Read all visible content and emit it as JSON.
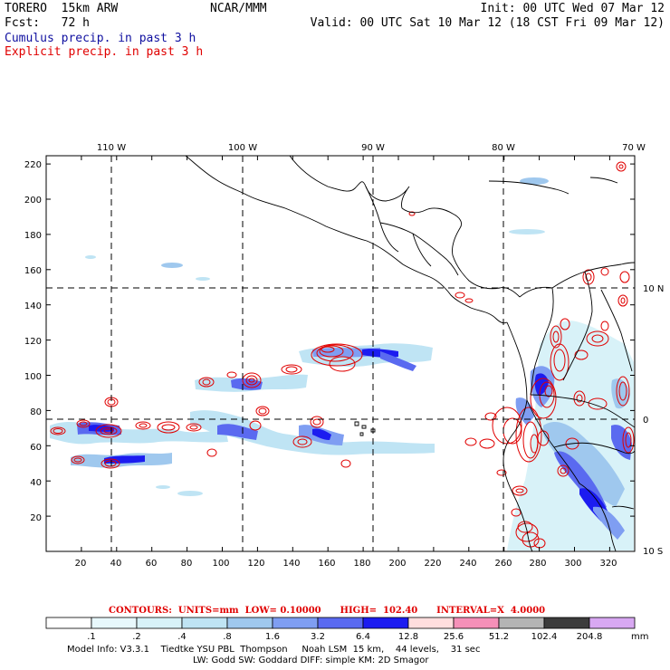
{
  "header": {
    "model": "TORERO  15km ARW",
    "org": "NCAR/MMM",
    "init": "Init: 00 UTC Wed 07 Mar 12",
    "fcst": "Fcst:   72 h",
    "valid": "Valid: 00 UTC Sat 10 Mar 12 (18 CST Fri 09 Mar 12)",
    "cumulus": "Cumulus precip. in past 3 h",
    "explicit": "Explicit precip. in past 3 h"
  },
  "colors": {
    "cumulus_text": "#1010a0",
    "explicit_text": "#e00000",
    "contour": "#e00000",
    "grid": "#000000"
  },
  "map": {
    "lon_labels": [
      "110 W",
      "100 W",
      "90 W",
      "80 W",
      "70 W"
    ],
    "lat_labels": [
      "10 N",
      "0",
      "10 S"
    ],
    "x_ticks": [
      "20",
      "40",
      "60",
      "80",
      "100",
      "120",
      "140",
      "160",
      "180",
      "200",
      "220",
      "240",
      "260",
      "280",
      "300",
      "320"
    ],
    "y_ticks": [
      "20",
      "40",
      "60",
      "80",
      "100",
      "120",
      "140",
      "160",
      "180",
      "200",
      "220"
    ]
  },
  "contours_line": {
    "label": "CONTOURS:  UNITS=mm  LOW= 0.10000      HIGH=  102.40      INTERVAL=X  4.0000"
  },
  "colorbar": {
    "levels": [
      ".1",
      ".2",
      ".4",
      ".8",
      "1.6",
      "3.2",
      "6.4",
      "12.8",
      "25.6",
      "51.2",
      "102.4",
      "204.8"
    ],
    "units": "mm",
    "colors": [
      "#ffffff",
      "#e8f8fc",
      "#d8f2f8",
      "#bfe4f4",
      "#9fc8ee",
      "#7f9ef2",
      "#5a6af0",
      "#1c1cf0",
      "#ffdede",
      "#f590b8",
      "#b4b4b4",
      "#3c3c3c",
      "#d8a8f2"
    ]
  },
  "footer": {
    "line1": "Model Info: V3.3.1    Tiedtke YSU PBL  Thompson     Noah LSM  15 km,    44 levels,    31 sec",
    "line2": "LW: Godd SW: Goddard DIFF: simple KM: 2D Smagor"
  }
}
